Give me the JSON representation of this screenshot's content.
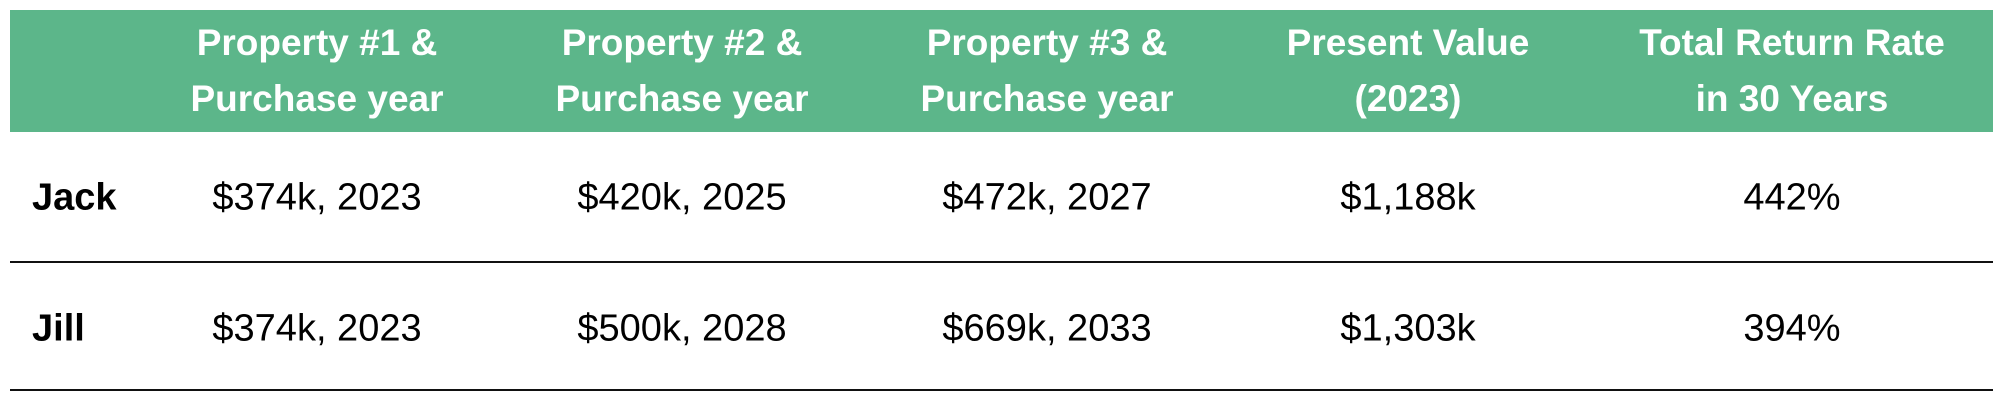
{
  "table": {
    "header": [
      [
        "Property #1 &",
        "Purchase year"
      ],
      [
        "Property #2 &",
        "Purchase year"
      ],
      [
        "Property #3 &",
        "Purchase year"
      ],
      [
        "Present Value",
        "(2023)"
      ],
      [
        "Total Return Rate",
        "in 30 Years"
      ]
    ],
    "rows": [
      [
        "Jack",
        "$374k, 2023",
        "$420k, 2025",
        "$472k, 2027",
        "$1,188k",
        "442%"
      ],
      [
        "Jill",
        "$374k, 2023",
        "$500k, 2028",
        "$669k, 2033",
        "$1,303k",
        "394%"
      ]
    ]
  }
}
